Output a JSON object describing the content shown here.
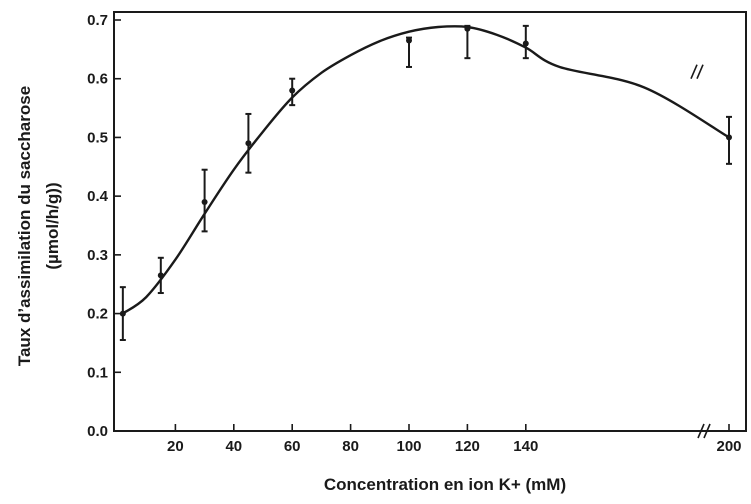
{
  "chart_data": {
    "type": "line",
    "title": "",
    "xlabel": "Concentration en ion K+ (mM)",
    "ylabel_lines": [
      "Taux d’assimilation du saccharose",
      "(µmol/h/g))"
    ],
    "x_ticks": [
      "20",
      "40",
      "60",
      "80",
      "100",
      "120",
      "140",
      "200"
    ],
    "x_tick_values": [
      20,
      40,
      60,
      80,
      100,
      120,
      140,
      200
    ],
    "y_ticks": [
      "0.0",
      "0.1",
      "0.2",
      "0.3",
      "0.4",
      "0.5",
      "0.6",
      "0.7"
    ],
    "y_tick_values": [
      0.0,
      0.1,
      0.2,
      0.3,
      0.4,
      0.5,
      0.6,
      0.7
    ],
    "xlim": [
      0,
      200
    ],
    "ylim": [
      0,
      0.72
    ],
    "axis_break": {
      "from": 140,
      "to": 200
    },
    "grid": false,
    "series": [
      {
        "x": [
          2,
          15,
          30,
          45,
          60,
          100,
          120,
          140,
          200
        ],
        "y": [
          0.2,
          0.265,
          0.39,
          0.49,
          0.58,
          0.665,
          0.685,
          0.66,
          0.5
        ],
        "err_low": [
          0.155,
          0.235,
          0.34,
          0.44,
          0.555,
          0.62,
          0.635,
          0.635,
          0.455
        ],
        "err_high": [
          0.245,
          0.295,
          0.445,
          0.54,
          0.6,
          0.67,
          0.69,
          0.69,
          0.535
        ]
      }
    ],
    "curve_x": [
      2,
      10,
      20,
      30,
      40,
      50,
      60,
      70,
      80,
      90,
      100,
      110,
      120,
      130,
      140,
      150,
      175,
      200
    ],
    "curve_y": [
      0.2,
      0.228,
      0.292,
      0.37,
      0.445,
      0.51,
      0.568,
      0.61,
      0.64,
      0.664,
      0.68,
      0.688,
      0.688,
      0.675,
      0.653,
      0.62,
      0.585,
      0.5
    ],
    "line_color": "#1a1a1a"
  }
}
